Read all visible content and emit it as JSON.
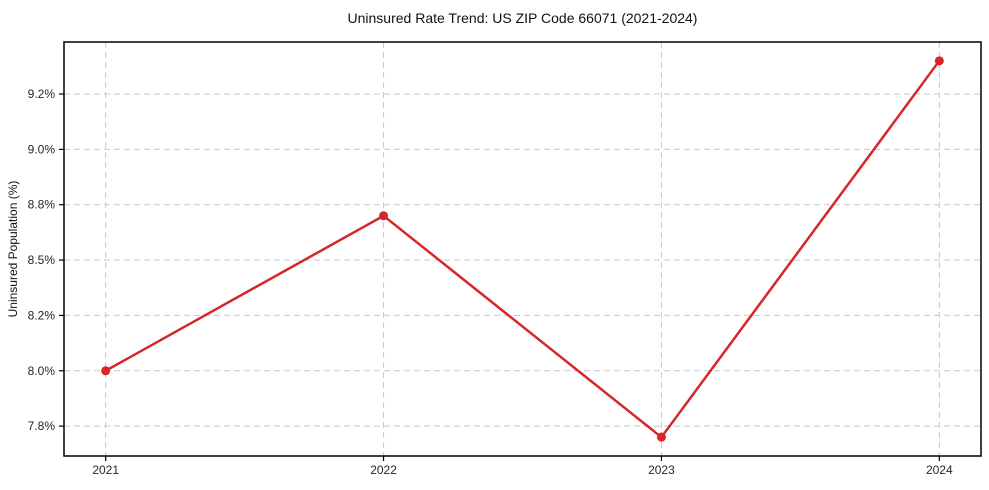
{
  "chart_data": {
    "type": "line",
    "title": "Uninsured Rate Trend: US ZIP Code 66071 (2021-2024)",
    "xlabel": "",
    "ylabel": "Uninsured Population (%)",
    "x": [
      2021,
      2022,
      2023,
      2024
    ],
    "x_tick_labels": [
      "2021",
      "2022",
      "2023",
      "2024"
    ],
    "series": [
      {
        "name": "Uninsured Rate",
        "values": [
          8.0,
          8.7,
          7.7,
          9.4
        ],
        "color": "#d62728",
        "marker": "circle"
      }
    ],
    "yticks": [
      7.75,
      8.0,
      8.25,
      8.5,
      8.75,
      9.0,
      9.25
    ],
    "ytick_labels": [
      "7.8%",
      "8.0%",
      "8.2%",
      "8.5%",
      "8.8%",
      "9.0%",
      "9.2%"
    ],
    "xlim": [
      2020.85,
      2024.15
    ],
    "ylim": [
      7.615,
      9.485
    ],
    "grid": true,
    "grid_style": "dashed",
    "legend_position": "none"
  },
  "colors": {
    "line": "#d62728",
    "marker": "#d62728",
    "grid": "#c9c9c9",
    "axis": "#000000",
    "text": "#262626",
    "title_text": "#111111",
    "background": "#ffffff"
  }
}
